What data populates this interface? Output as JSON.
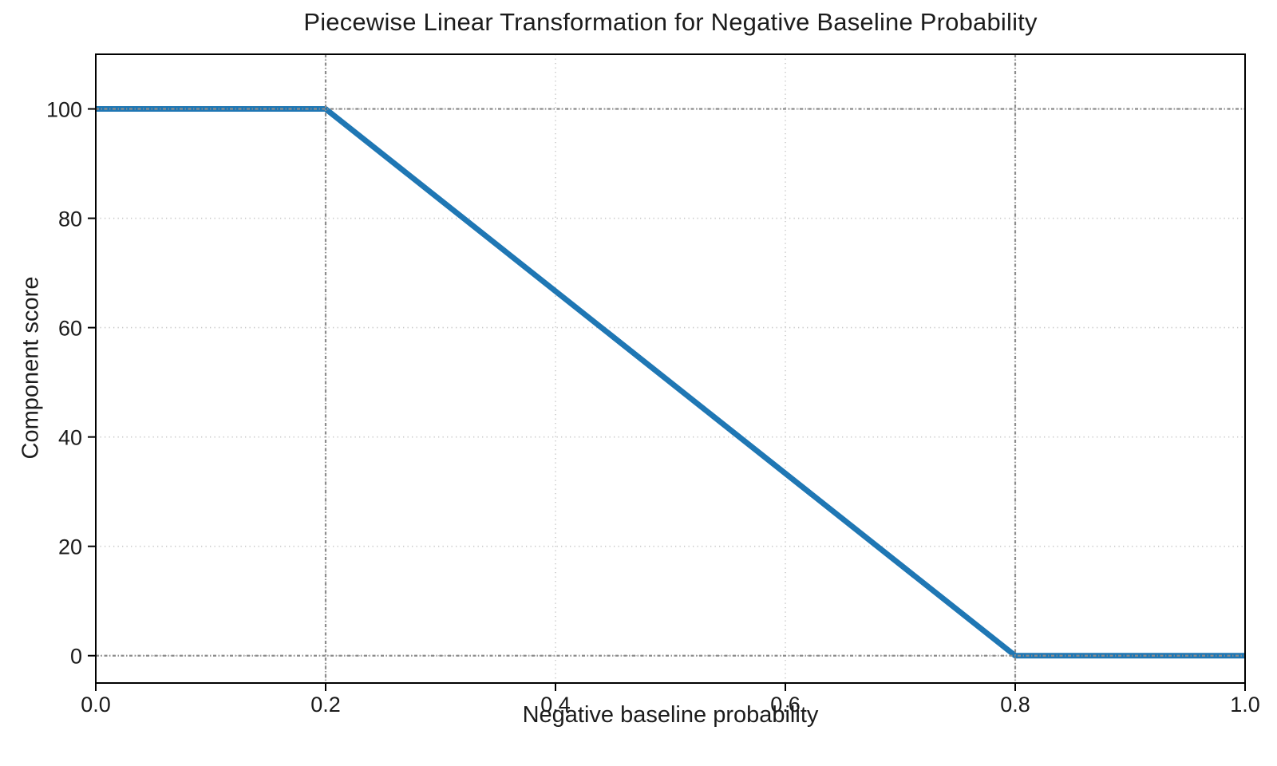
{
  "chart_data": {
    "type": "line",
    "title": "Piecewise Linear Transformation for Negative Baseline Probability",
    "xlabel": "Negative baseline probability",
    "ylabel": "Component score",
    "xlim": [
      0,
      1
    ],
    "ylim": [
      -5,
      110
    ],
    "xticks": [
      0.0,
      0.2,
      0.4,
      0.6,
      0.8,
      1.0
    ],
    "xtick_labels": [
      "0.0",
      "0.2",
      "0.4",
      "0.6",
      "0.8",
      "1.0"
    ],
    "yticks": [
      0,
      20,
      40,
      60,
      80,
      100
    ],
    "ytick_labels": [
      "0",
      "20",
      "40",
      "60",
      "80",
      "100"
    ],
    "grid": true,
    "legend": false,
    "series": [
      {
        "name": "component-score",
        "color": "#1f77b4",
        "line_width": 7,
        "points": [
          [
            0.0,
            100
          ],
          [
            0.2,
            100
          ],
          [
            0.8,
            0
          ],
          [
            1.0,
            0
          ]
        ]
      }
    ],
    "reference_lines": {
      "x": [
        0.2,
        0.8
      ],
      "y": [
        0,
        100
      ],
      "color": "#8c8c8c",
      "style": "dash-dot"
    },
    "grid_style": {
      "color": "#c9c9c9",
      "style": "dotted"
    },
    "spine_color": "#000000"
  }
}
